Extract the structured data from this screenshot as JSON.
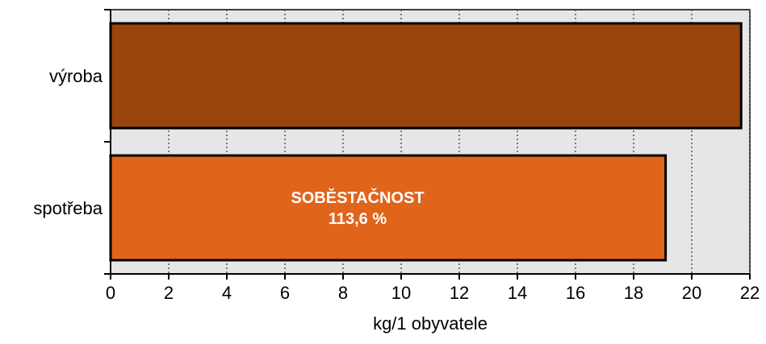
{
  "chart_data": {
    "type": "bar",
    "orientation": "horizontal",
    "categories": [
      "výroba",
      "spotřeba"
    ],
    "values": [
      21.7,
      19.1
    ],
    "bar_colors": [
      "#9a440e",
      "#e0641a"
    ],
    "xlabel": "kg/1 obyvatele",
    "xlim": [
      0,
      22
    ],
    "xticks": [
      "0",
      "2",
      "4",
      "6",
      "8",
      "10",
      "12",
      "14",
      "16",
      "18",
      "20",
      "22"
    ],
    "grid": "vertical dotted",
    "plot_background": "#e6e6e6",
    "annotation": {
      "category": "spotřeba",
      "lines": [
        "SOBĚSTAČNOST",
        "113,6 %"
      ]
    }
  }
}
